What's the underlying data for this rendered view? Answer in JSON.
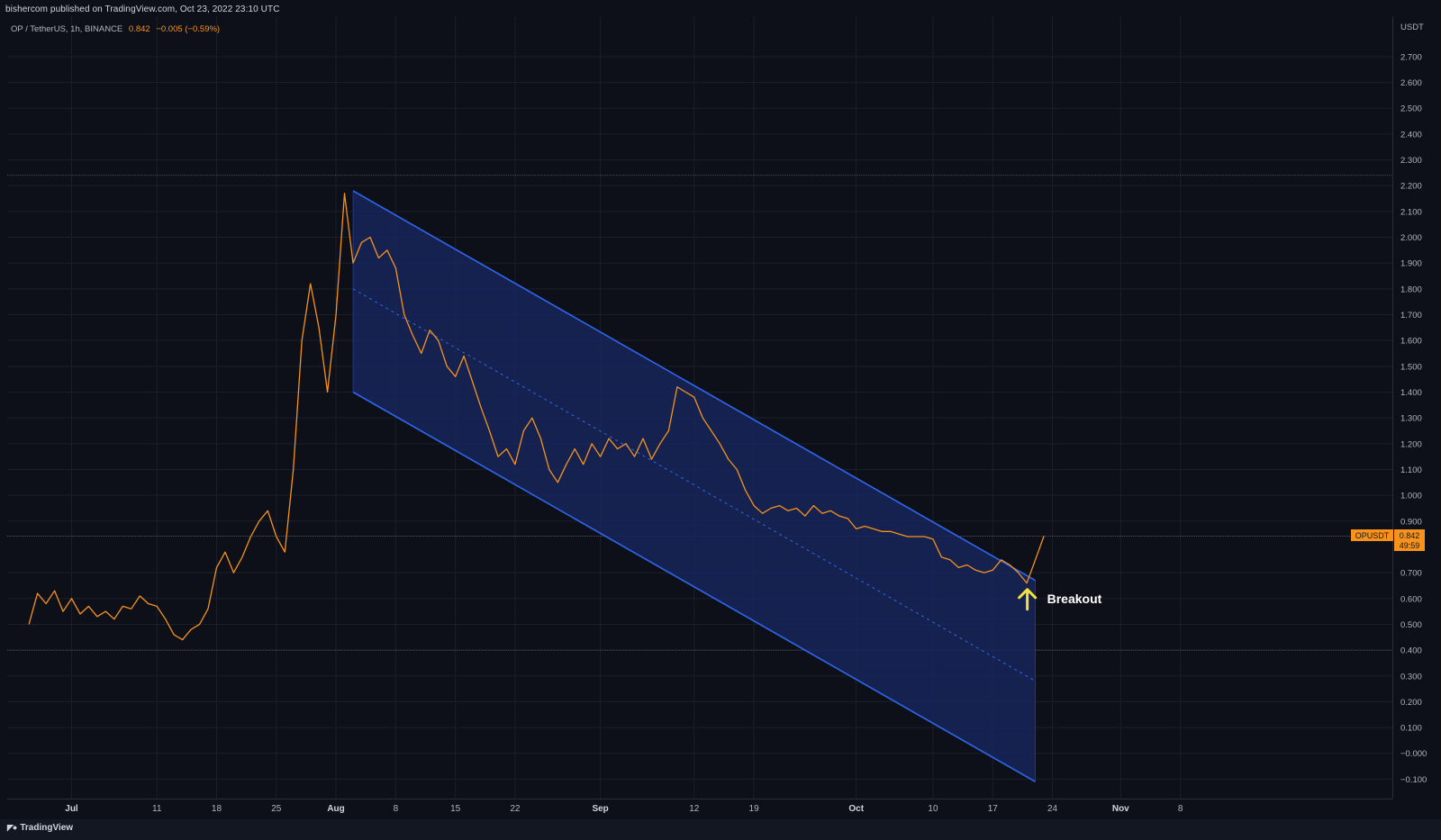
{
  "header": {
    "publish_text": "bishercom published on TradingView.com, Oct 23, 2022 23:10 UTC",
    "symbol": "OP / TetherUS, 1h, BINANCE",
    "last_price": "0.842",
    "change": "−0.005 (−0.59%)"
  },
  "price_tag": {
    "ticker": "OPUSDT",
    "price": "0.842",
    "countdown": "49:59"
  },
  "annotation": {
    "text": "Breakout"
  },
  "footer": {
    "brand": "TradingView"
  },
  "colors": {
    "background": "#0d1018",
    "price_line": "#f7931a",
    "channel_fill": "#17265a",
    "channel_line": "#2f66f0",
    "arrow": "#f5e23c"
  },
  "chart_data": {
    "type": "line",
    "series": [
      {
        "points": [
          [
            "Jun 26",
            0.5
          ],
          [
            "Jun 27",
            0.62
          ],
          [
            "Jun 28",
            0.58
          ],
          [
            "Jun 29",
            0.63
          ],
          [
            "Jun 30",
            0.55
          ],
          [
            "Jul 1",
            0.6
          ],
          [
            "Jul 2",
            0.54
          ],
          [
            "Jul 3",
            0.57
          ],
          [
            "Jul 4",
            0.53
          ],
          [
            "Jul 5",
            0.55
          ],
          [
            "Jul 6",
            0.52
          ],
          [
            "Jul 7",
            0.57
          ],
          [
            "Jul 8",
            0.56
          ],
          [
            "Jul 9",
            0.61
          ],
          [
            "Jul 10",
            0.58
          ],
          [
            "Jul 11",
            0.57
          ],
          [
            "Jul 12",
            0.52
          ],
          [
            "Jul 13",
            0.46
          ],
          [
            "Jul 14",
            0.44
          ],
          [
            "Jul 15",
            0.48
          ],
          [
            "Jul 16",
            0.5
          ],
          [
            "Jul 17",
            0.56
          ],
          [
            "Jul 18",
            0.72
          ],
          [
            "Jul 19",
            0.78
          ],
          [
            "Jul 20",
            0.7
          ],
          [
            "Jul 21",
            0.76
          ],
          [
            "Jul 22",
            0.84
          ],
          [
            "Jul 23",
            0.9
          ],
          [
            "Jul 24",
            0.94
          ],
          [
            "Jul 25",
            0.84
          ],
          [
            "Jul 26",
            0.78
          ],
          [
            "Jul 27",
            1.1
          ],
          [
            "Jul 28",
            1.6
          ],
          [
            "Jul 29",
            1.82
          ],
          [
            "Jul 30",
            1.65
          ],
          [
            "Jul 31",
            1.4
          ],
          [
            "Aug 1",
            1.7
          ],
          [
            "Aug 2",
            2.17
          ],
          [
            "Aug 3",
            1.9
          ],
          [
            "Aug 4",
            1.98
          ],
          [
            "Aug 5",
            2.0
          ],
          [
            "Aug 6",
            1.92
          ],
          [
            "Aug 7",
            1.95
          ],
          [
            "Aug 8",
            1.88
          ],
          [
            "Aug 9",
            1.7
          ],
          [
            "Aug 10",
            1.62
          ],
          [
            "Aug 11",
            1.55
          ],
          [
            "Aug 12",
            1.64
          ],
          [
            "Aug 13",
            1.6
          ],
          [
            "Aug 14",
            1.5
          ],
          [
            "Aug 15",
            1.46
          ],
          [
            "Aug 16",
            1.54
          ],
          [
            "Aug 17",
            1.44
          ],
          [
            "Aug 18",
            1.34
          ],
          [
            "Aug 19",
            1.25
          ],
          [
            "Aug 20",
            1.15
          ],
          [
            "Aug 21",
            1.18
          ],
          [
            "Aug 22",
            1.12
          ],
          [
            "Aug 23",
            1.25
          ],
          [
            "Aug 24",
            1.3
          ],
          [
            "Aug 25",
            1.22
          ],
          [
            "Aug 26",
            1.1
          ],
          [
            "Aug 27",
            1.05
          ],
          [
            "Aug 28",
            1.12
          ],
          [
            "Aug 29",
            1.18
          ],
          [
            "Aug 30",
            1.12
          ],
          [
            "Aug 31",
            1.2
          ],
          [
            "Sep 1",
            1.15
          ],
          [
            "Sep 2",
            1.22
          ],
          [
            "Sep 3",
            1.18
          ],
          [
            "Sep 4",
            1.2
          ],
          [
            "Sep 5",
            1.15
          ],
          [
            "Sep 6",
            1.22
          ],
          [
            "Sep 7",
            1.14
          ],
          [
            "Sep 8",
            1.2
          ],
          [
            "Sep 9",
            1.25
          ],
          [
            "Sep 10",
            1.42
          ],
          [
            "Sep 11",
            1.4
          ],
          [
            "Sep 12",
            1.38
          ],
          [
            "Sep 13",
            1.3
          ],
          [
            "Sep 14",
            1.25
          ],
          [
            "Sep 15",
            1.2
          ],
          [
            "Sep 16",
            1.14
          ],
          [
            "Sep 17",
            1.1
          ],
          [
            "Sep 18",
            1.02
          ],
          [
            "Sep 19",
            0.96
          ],
          [
            "Sep 20",
            0.93
          ],
          [
            "Sep 21",
            0.95
          ],
          [
            "Sep 22",
            0.96
          ],
          [
            "Sep 23",
            0.94
          ],
          [
            "Sep 24",
            0.95
          ],
          [
            "Sep 25",
            0.92
          ],
          [
            "Sep 26",
            0.96
          ],
          [
            "Sep 27",
            0.93
          ],
          [
            "Sep 28",
            0.94
          ],
          [
            "Sep 29",
            0.92
          ],
          [
            "Sep 30",
            0.91
          ],
          [
            "Oct 1",
            0.87
          ],
          [
            "Oct 2",
            0.88
          ],
          [
            "Oct 3",
            0.87
          ],
          [
            "Oct 4",
            0.86
          ],
          [
            "Oct 5",
            0.86
          ],
          [
            "Oct 6",
            0.85
          ],
          [
            "Oct 7",
            0.84
          ],
          [
            "Oct 8",
            0.84
          ],
          [
            "Oct 9",
            0.84
          ],
          [
            "Oct 10",
            0.83
          ],
          [
            "Oct 11",
            0.76
          ],
          [
            "Oct 12",
            0.75
          ],
          [
            "Oct 13",
            0.72
          ],
          [
            "Oct 14",
            0.73
          ],
          [
            "Oct 15",
            0.71
          ],
          [
            "Oct 16",
            0.7
          ],
          [
            "Oct 17",
            0.71
          ],
          [
            "Oct 18",
            0.75
          ],
          [
            "Oct 19",
            0.73
          ],
          [
            "Oct 20",
            0.7
          ],
          [
            "Oct 21",
            0.66
          ],
          [
            "Oct 22",
            0.75
          ],
          [
            "Oct 23",
            0.842
          ]
        ]
      }
    ],
    "channel": {
      "upper": [
        [
          "Aug 3",
          2.18
        ],
        [
          "Oct 22",
          0.67
        ]
      ],
      "middle": [
        [
          "Aug 3",
          1.8
        ],
        [
          "Oct 22",
          0.28
        ]
      ],
      "lower": [
        [
          "Aug 3",
          1.4
        ],
        [
          "Oct 22",
          -0.11
        ]
      ]
    },
    "reference_levels": [
      2.24,
      0.842,
      0.4
    ],
    "x_ticks": [
      {
        "label": "Jul",
        "date": "Jul 1",
        "bold": true
      },
      {
        "label": "11",
        "date": "Jul 11",
        "bold": false
      },
      {
        "label": "18",
        "date": "Jul 18",
        "bold": false
      },
      {
        "label": "25",
        "date": "Jul 25",
        "bold": false
      },
      {
        "label": "Aug",
        "date": "Aug 1",
        "bold": true
      },
      {
        "label": "8",
        "date": "Aug 8",
        "bold": false
      },
      {
        "label": "15",
        "date": "Aug 15",
        "bold": false
      },
      {
        "label": "22",
        "date": "Aug 22",
        "bold": false
      },
      {
        "label": "Sep",
        "date": "Sep 1",
        "bold": true
      },
      {
        "label": "12",
        "date": "Sep 12",
        "bold": false
      },
      {
        "label": "19",
        "date": "Sep 19",
        "bold": false
      },
      {
        "label": "Oct",
        "date": "Oct 1",
        "bold": true
      },
      {
        "label": "10",
        "date": "Oct 10",
        "bold": false
      },
      {
        "label": "17",
        "date": "Oct 17",
        "bold": false
      },
      {
        "label": "24",
        "date": "Oct 24",
        "bold": false
      },
      {
        "label": "Nov",
        "date": "Nov 1",
        "bold": true
      },
      {
        "label": "8",
        "date": "Nov 8",
        "bold": false
      }
    ],
    "y_ticks": [
      "2.700",
      "2.600",
      "2.500",
      "2.400",
      "2.300",
      "2.200",
      "2.100",
      "2.000",
      "1.900",
      "1.800",
      "1.700",
      "1.600",
      "1.500",
      "1.400",
      "1.300",
      "1.200",
      "1.100",
      "1.000",
      "0.900",
      "0.700",
      "0.600",
      "0.500",
      "0.400",
      "0.300",
      "0.200",
      "0.100",
      "−0.000",
      "−0.100"
    ],
    "y_unit": "USDT",
    "ylim": [
      -0.13,
      2.78
    ],
    "grid": true,
    "breakout_date": "Oct 21"
  }
}
